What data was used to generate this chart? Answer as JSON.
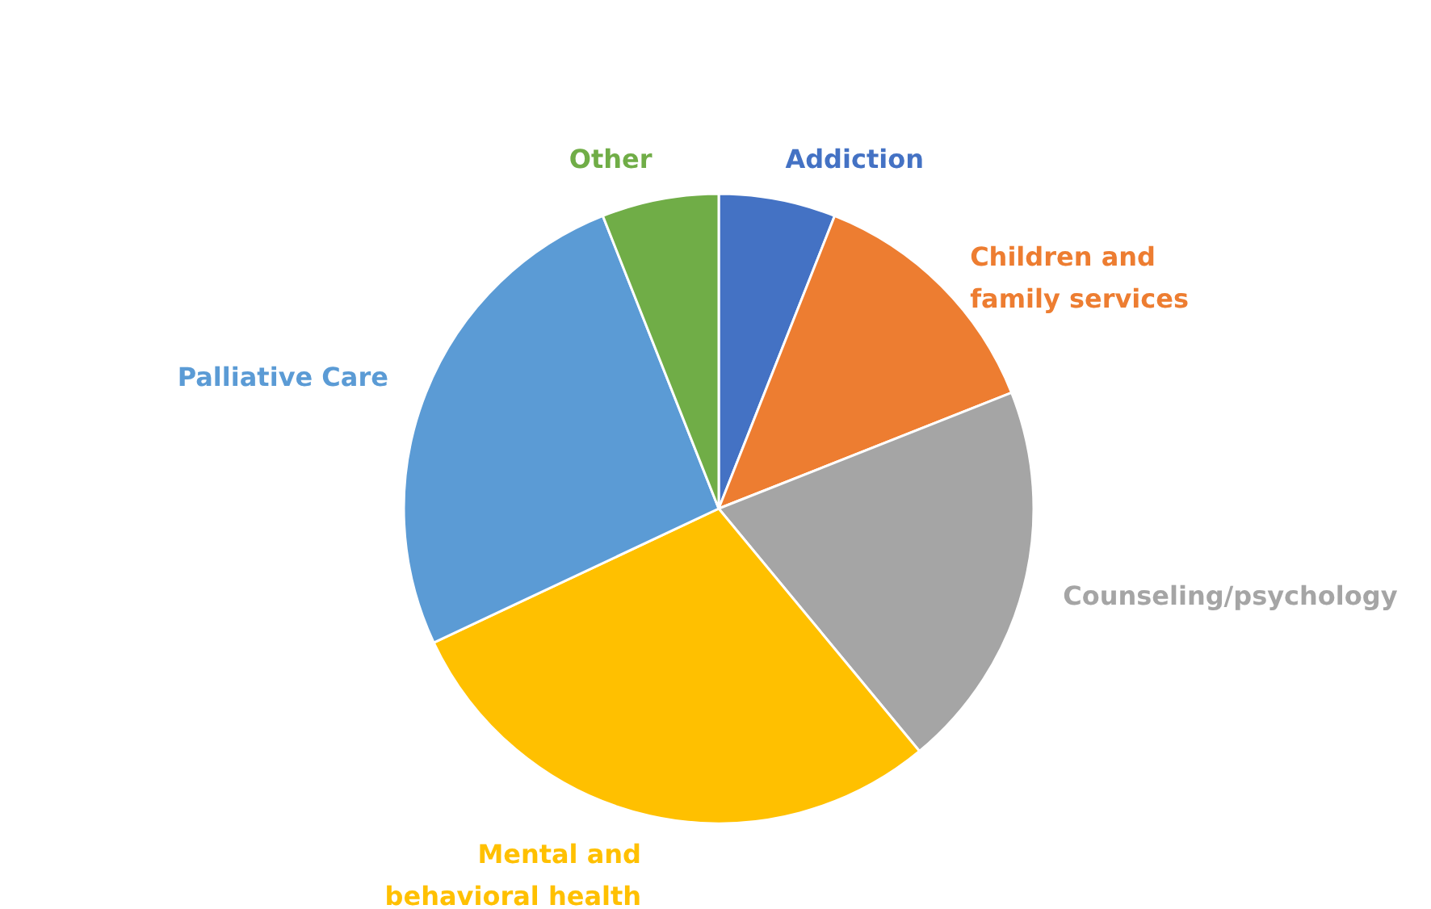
{
  "chart_data": {
    "type": "pie",
    "categories": [
      "Addiction",
      "Children and family services",
      "Counseling/psychology",
      "Mental and behavioral health",
      "Palliative Care",
      "Other"
    ],
    "values": [
      6,
      13,
      20,
      29,
      26,
      6
    ],
    "colors": [
      "#4472c4",
      "#ed7d31",
      "#a5a5a5",
      "#ffc000",
      "#5b9bd5",
      "#70ad47"
    ],
    "legend": false
  }
}
